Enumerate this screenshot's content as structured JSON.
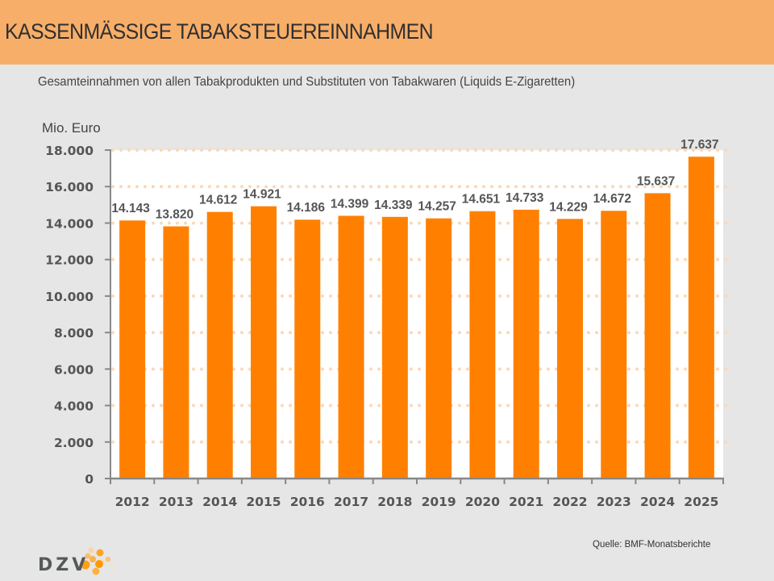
{
  "header": {
    "title": "KASSENMÄSSIGE TABAKSTEUEREINNAHMEN"
  },
  "subtitle": "Gesamteinnahmen von allen Tabakprodukten und Substituten von Tabakwaren (Liquids E-Zigaretten)",
  "source": "Quelle: BMF-Monatsberichte",
  "logo": {
    "text": "DZV"
  },
  "colors": {
    "header_bg": "#f7ae69",
    "bar": "#ff8000",
    "gridline": "#fad8b8",
    "axis": "#888888",
    "background": "#e6e6e6",
    "plot_bg": "#ffffff"
  },
  "chart_data": {
    "type": "bar",
    "title": "",
    "ylabel": "Mio. Euro",
    "xlabel": "",
    "categories": [
      "2012",
      "2013",
      "2014",
      "2015",
      "2016",
      "2017",
      "2018",
      "2019",
      "2020",
      "2021",
      "2022",
      "2023",
      "2024",
      "2025"
    ],
    "values": [
      14143,
      13820,
      14612,
      14921,
      14186,
      14399,
      14339,
      14257,
      14651,
      14733,
      14229,
      14672,
      15637,
      17637
    ],
    "value_labels": [
      "14.143",
      "13.820",
      "14.612",
      "14.921",
      "14.186",
      "14.399",
      "14.339",
      "14.257",
      "14.651",
      "14.733",
      "14.229",
      "14.672",
      "15.637",
      "17.637"
    ],
    "ylim": [
      0,
      18000
    ],
    "yticks": [
      0,
      2000,
      4000,
      6000,
      8000,
      10000,
      12000,
      14000,
      16000,
      18000
    ],
    "ytick_labels": [
      "0",
      "2.000",
      "4.000",
      "6.000",
      "8.000",
      "10.000",
      "12.000",
      "14.000",
      "16.000",
      "18.000"
    ],
    "grid": true,
    "grid_style": "dotted",
    "legend": "none"
  }
}
